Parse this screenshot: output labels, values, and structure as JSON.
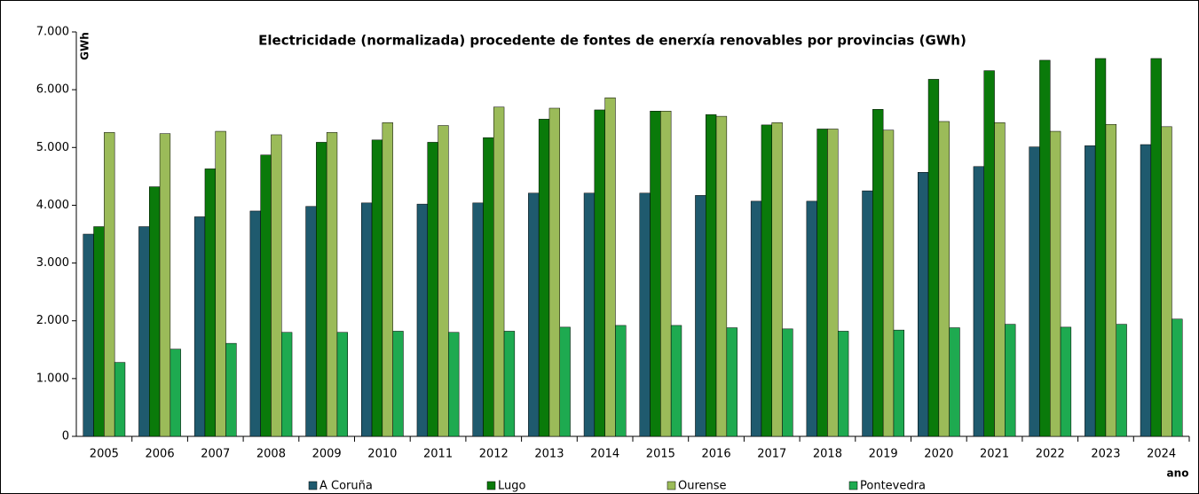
{
  "chart_data": {
    "type": "bar",
    "title": "Electricidade (normalizada) procedente de fontes de enerxía renovables por provincias (GWh)",
    "y_label": "GWh",
    "x_label": "ano",
    "categories": [
      "2005",
      "2006",
      "2007",
      "2008",
      "2009",
      "2010",
      "2011",
      "2012",
      "2013",
      "2014",
      "2015",
      "2016",
      "2017",
      "2018",
      "2019",
      "2020",
      "2021",
      "2022",
      "2023",
      "2024"
    ],
    "series": [
      {
        "name": "A Coruña",
        "color": "#1f5a6e",
        "values": [
          3500,
          3630,
          3800,
          3900,
          3980,
          4040,
          4020,
          4040,
          4210,
          4210,
          4210,
          4170,
          4070,
          4070,
          4250,
          4570,
          4670,
          5010,
          5030,
          5050
        ]
      },
      {
        "name": "Lugo",
        "color": "#0a7a0a",
        "values": [
          3630,
          4320,
          4630,
          4870,
          5090,
          5130,
          5090,
          5170,
          5490,
          5650,
          5630,
          5570,
          5390,
          5320,
          5660,
          6180,
          6330,
          6510,
          6540,
          6540
        ]
      },
      {
        "name": "Ourense",
        "color": "#9bbb59",
        "values": [
          5260,
          5240,
          5280,
          5220,
          5260,
          5430,
          5380,
          5700,
          5680,
          5860,
          5630,
          5540,
          5430,
          5320,
          5300,
          5450,
          5430,
          5280,
          5400,
          5360
        ]
      },
      {
        "name": "Pontevedra",
        "color": "#1eaa50",
        "values": [
          1280,
          1510,
          1610,
          1800,
          1800,
          1820,
          1800,
          1820,
          1890,
          1920,
          1920,
          1880,
          1860,
          1820,
          1840,
          1880,
          1940,
          1890,
          1940,
          2030
        ]
      }
    ],
    "ylim": [
      0,
      7000
    ],
    "yticks": [
      0,
      {
        "value": 1000,
        "label": "1.000"
      },
      {
        "value": 2000,
        "label": "2.000"
      },
      {
        "value": 3000,
        "label": "3.000"
      },
      {
        "value": 4000,
        "label": "4.000"
      },
      {
        "value": 5000,
        "label": "5.000"
      },
      {
        "value": 6000,
        "label": "6.000"
      },
      {
        "value": 7000,
        "label": "7.000"
      }
    ],
    "legend": "bottom"
  }
}
